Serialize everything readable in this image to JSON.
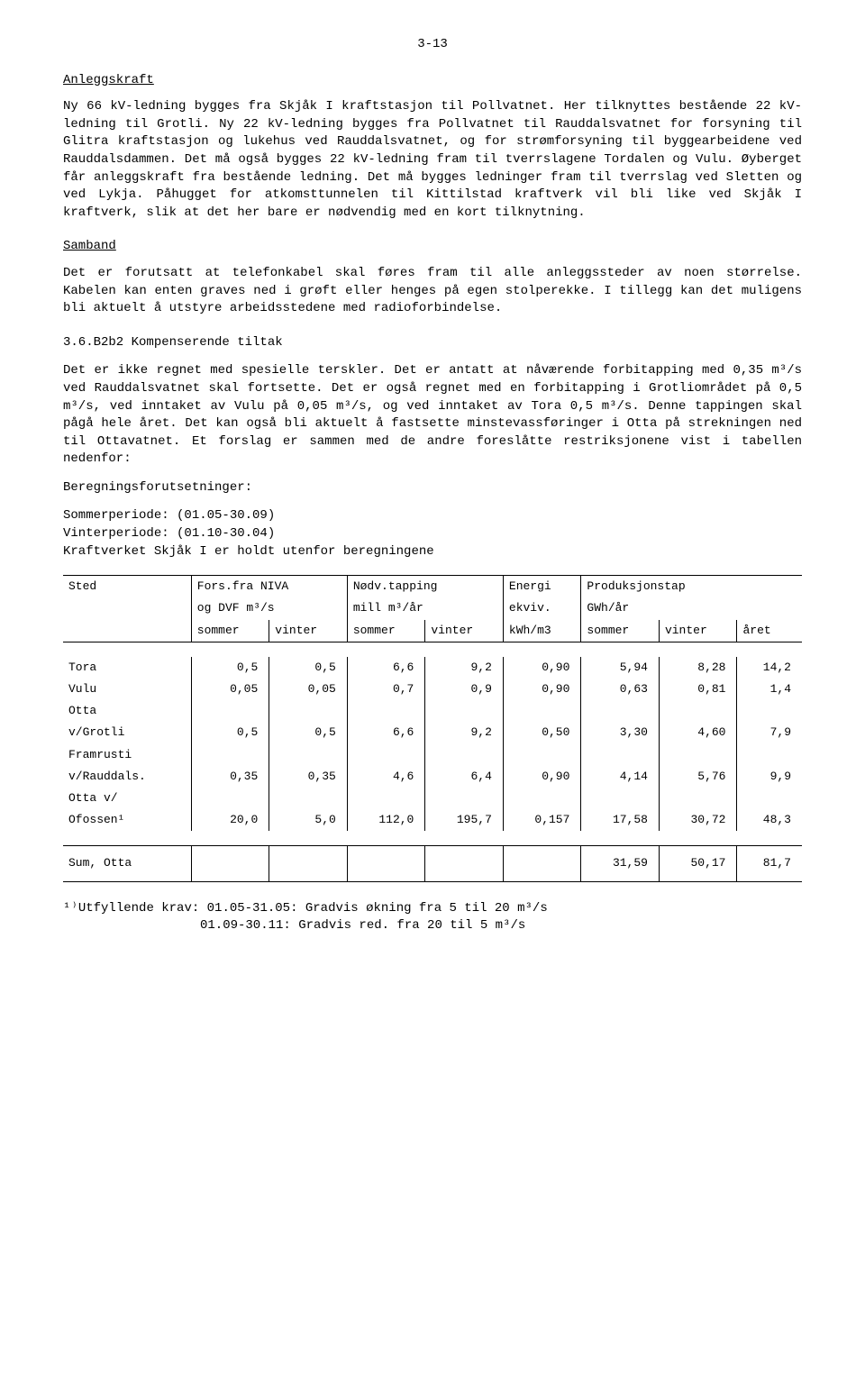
{
  "page_number": "3-13",
  "sections": {
    "anleggskraft": {
      "heading": "Anleggskraft",
      "para1": "Ny 66 kV-ledning bygges fra Skjåk I kraftstasjon til Pollvatnet. Her tilknyttes bestående 22 kV-ledning til Grotli. Ny 22 kV-ledning bygges fra Pollvatnet til Rauddalsvatnet for forsyning til Glitra kraftstasjon og lukehus ved Rauddalsvatnet, og for strømforsyning til byggearbeidene ved Rauddalsdammen. Det må også bygges 22 kV-ledning fram til tverrslagene Tordalen og Vulu. Øyberget får anleggskraft fra bestående ledning. Det må bygges ledninger fram til tverrslag ved Sletten og ved Lykja. Påhugget for atkomsttunnelen til Kittilstad kraftverk vil bli like ved Skjåk I kraftverk, slik at det her bare er nødvendig med en kort tilknytning."
    },
    "samband": {
      "heading": "Samband",
      "para1": "Det er forutsatt at telefonkabel skal føres fram til alle anleggssteder av noen størrelse. Kabelen kan enten graves ned i grøft eller henges på egen stolperekke. I tillegg kan det muligens bli aktuelt å utstyre arbeidsstedene med radioforbindelse."
    },
    "komp": {
      "heading": "3.6.B2b2  Kompenserende tiltak",
      "para1": "Det er ikke regnet med spesielle terskler. Det er antatt at nåværende forbitapping med 0,35 m³/s ved Rauddalsvatnet skal fortsette. Det er også regnet med en forbitapping i Grotliområdet på 0,5 m³/s, ved inntaket av Vulu på 0,05 m³/s, og ved inntaket av Tora 0,5 m³/s. Denne tappingen skal pågå hele året. Det kan også bli aktuelt å fastsette minstevassføringer i Otta på strekningen ned til Ottavatnet. Et forslag er sammen med de andre foreslåtte restriksjonene vist i tabellen nedenfor:",
      "bereg_label": "Beregningsforutsetninger:",
      "sommer": "Sommerperiode: (01.05-30.09)",
      "vinter": "Vinterperiode: (01.10-30.04)",
      "kraftverk": "Kraftverket Skjåk I er holdt utenfor beregningene"
    }
  },
  "table": {
    "headers": {
      "sted": "Sted",
      "fors1": "Fors.fra NIVA",
      "fors2": "og DVF m³/s",
      "nodv1": "Nødv.tapping",
      "nodv2": "mill m³/år",
      "energi1": "Energi",
      "energi2": "ekviv.",
      "prod1": "Produksjonstap",
      "prod2": "GWh/år",
      "sommer": "sommer",
      "vinter": "vinter",
      "kwh": "kWh/m3",
      "aret": "året"
    },
    "rows": [
      {
        "sted": "Tora",
        "fs": "0,5",
        "fv": "0,5",
        "ns": "6,6",
        "nv": "9,2",
        "e": "0,90",
        "ps": "5,94",
        "pv": "8,28",
        "pa": "14,2"
      },
      {
        "sted": "Vulu",
        "fs": "0,05",
        "fv": "0,05",
        "ns": "0,7",
        "nv": "0,9",
        "e": "0,90",
        "ps": "0,63",
        "pv": "0,81",
        "pa": "1,4"
      },
      {
        "sted": "Otta",
        "fs": "",
        "fv": "",
        "ns": "",
        "nv": "",
        "e": "",
        "ps": "",
        "pv": "",
        "pa": ""
      },
      {
        "sted": "v/Grotli",
        "fs": "0,5",
        "fv": "0,5",
        "ns": "6,6",
        "nv": "9,2",
        "e": "0,50",
        "ps": "3,30",
        "pv": "4,60",
        "pa": "7,9"
      },
      {
        "sted": "Framrusti",
        "fs": "",
        "fv": "",
        "ns": "",
        "nv": "",
        "e": "",
        "ps": "",
        "pv": "",
        "pa": ""
      },
      {
        "sted": "v/Rauddals.",
        "fs": "0,35",
        "fv": "0,35",
        "ns": "4,6",
        "nv": "6,4",
        "e": "0,90",
        "ps": "4,14",
        "pv": "5,76",
        "pa": "9,9"
      },
      {
        "sted": "Otta v/",
        "fs": "",
        "fv": "",
        "ns": "",
        "nv": "",
        "e": "",
        "ps": "",
        "pv": "",
        "pa": ""
      },
      {
        "sted": "Ofossen¹",
        "fs": "20,0",
        "fv": "5,0",
        "ns": "112,0",
        "nv": "195,7",
        "e": "0,157",
        "ps": "17,58",
        "pv": "30,72",
        "pa": "48,3"
      }
    ],
    "sum": {
      "label": "Sum, Otta",
      "ps": "31,59",
      "pv": "50,17",
      "pa": "81,7"
    }
  },
  "footnote": {
    "line1": "¹⁾Utfyllende krav: 01.05-31.05: Gradvis økning fra 5 til 20 m³/s",
    "line2": "01.09-30.11: Gradvis red. fra 20 til 5 m³/s"
  }
}
